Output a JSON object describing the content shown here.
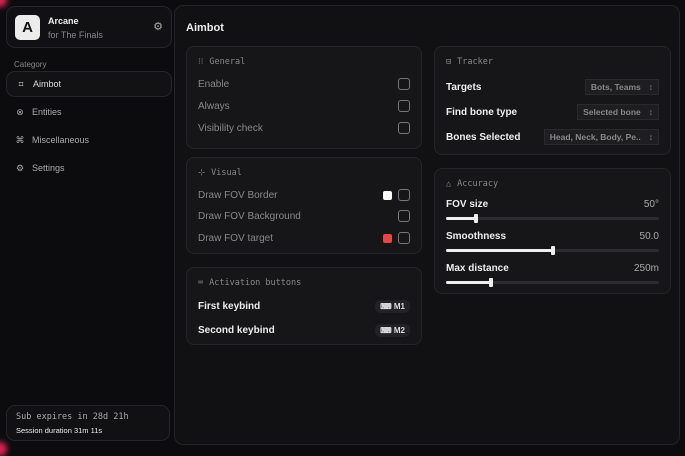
{
  "brand": {
    "logo": "A",
    "name": "Arcane",
    "subtitle": "for The Finals"
  },
  "sidebar": {
    "category_label": "Category",
    "items": [
      {
        "label": "Aimbot",
        "icon": "crosshair-icon",
        "active": true
      },
      {
        "label": "Entities",
        "icon": "entities-icon"
      },
      {
        "label": "Miscellaneous",
        "icon": "misc-icon"
      },
      {
        "label": "Settings",
        "icon": "gear-icon"
      }
    ]
  },
  "subscription": {
    "expires": "Sub expires in 28d 21h",
    "session": "Session duration 31m 11s"
  },
  "page": {
    "title": "Aimbot"
  },
  "general": {
    "title": "General",
    "rows": [
      {
        "label": "Enable",
        "checked": false
      },
      {
        "label": "Always",
        "checked": false
      },
      {
        "label": "Visibility check",
        "checked": false
      }
    ]
  },
  "visual": {
    "title": "Visual",
    "rows": [
      {
        "label": "Draw FOV Border",
        "color": "#ffffff",
        "checked": false
      },
      {
        "label": "Draw FOV Background",
        "checked": false
      },
      {
        "label": "Draw FOV target",
        "color": "#e84545",
        "checked": false
      }
    ]
  },
  "activation": {
    "title": "Activation buttons",
    "rows": [
      {
        "label": "First keybind",
        "key": "M1"
      },
      {
        "label": "Second keybind",
        "key": "M2"
      }
    ]
  },
  "tracker": {
    "title": "Tracker",
    "rows": [
      {
        "label": "Targets",
        "value": "Bots, Teams"
      },
      {
        "label": "Find bone type",
        "value": "Selected bone"
      },
      {
        "label": "Bones Selected",
        "value": "Head, Neck, Body, Pe.."
      }
    ]
  },
  "accuracy": {
    "title": "Accuracy",
    "sliders": [
      {
        "label": "FOV size",
        "value": "50°",
        "fraction": 0.14
      },
      {
        "label": "Smoothness",
        "value": "50.0",
        "fraction": 0.5
      },
      {
        "label": "Max distance",
        "value": "250m",
        "fraction": 0.21
      }
    ]
  }
}
